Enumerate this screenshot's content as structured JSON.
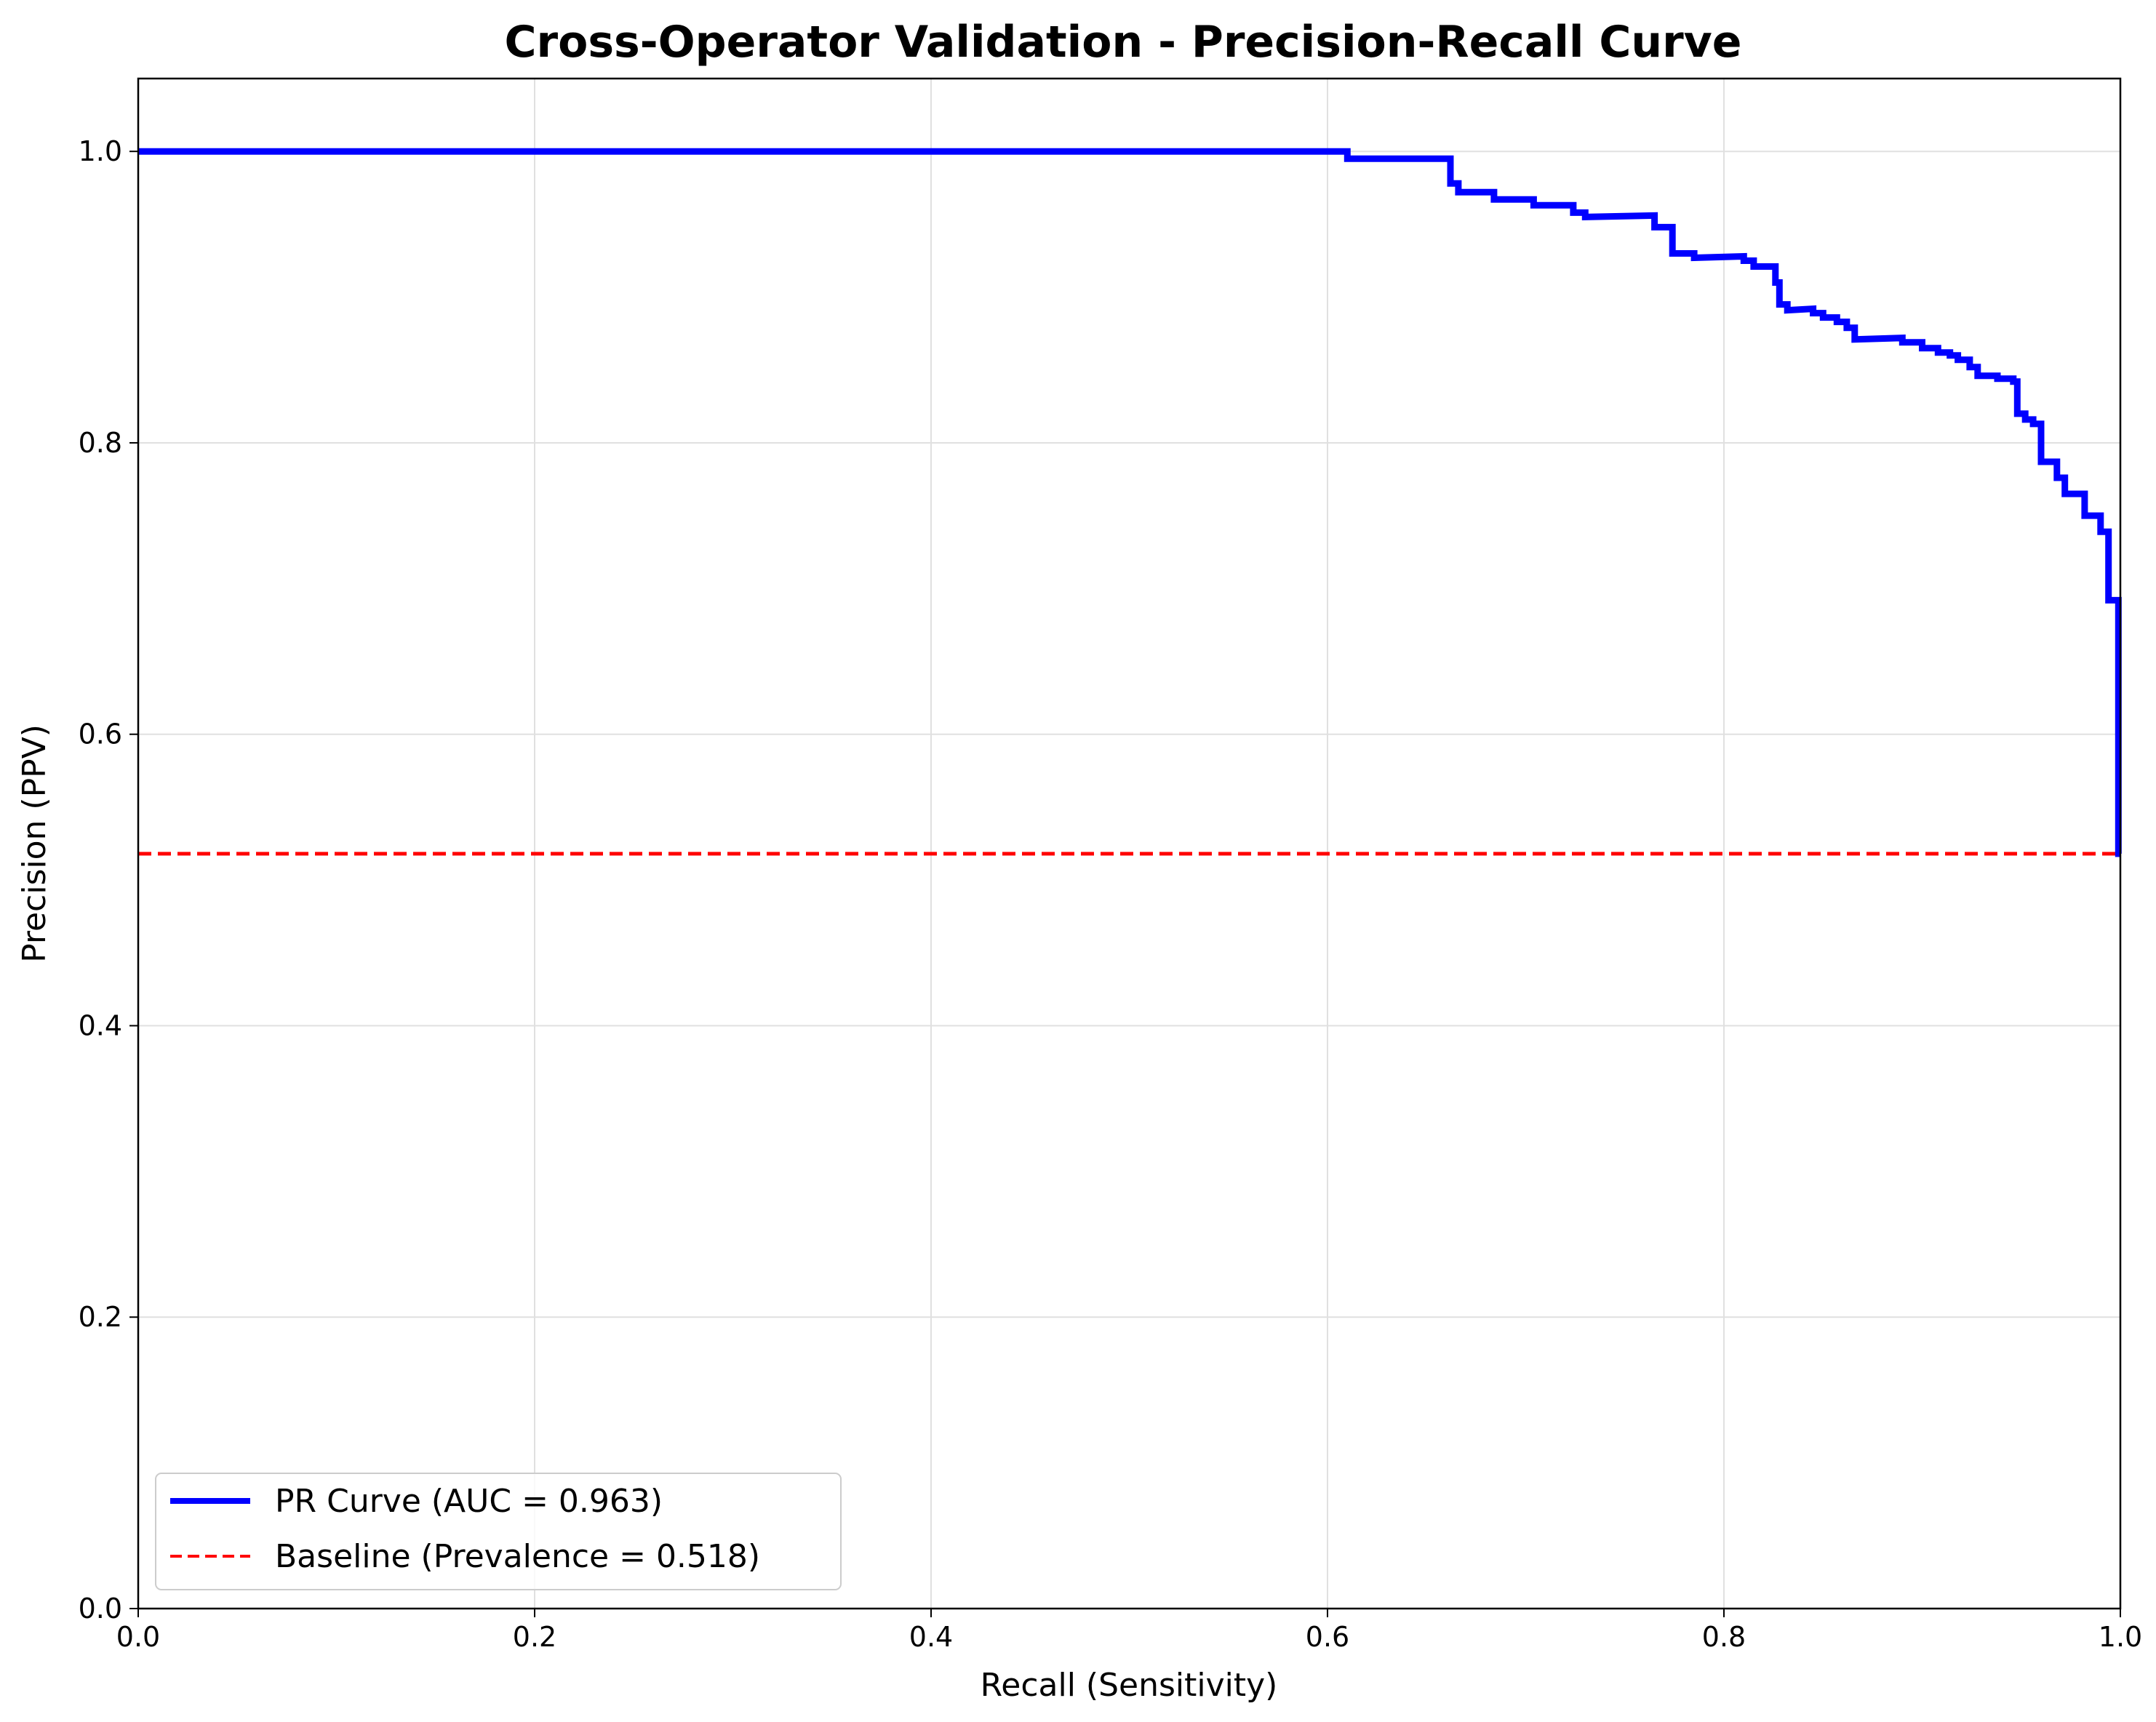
{
  "chart_data": {
    "type": "line",
    "title": "Cross-Operator Validation - Precision-Recall Curve",
    "xlabel": "Recall (Sensitivity)",
    "ylabel": "Precision (PPV)",
    "xlim": [
      0.0,
      1.0
    ],
    "ylim": [
      0.0,
      1.05
    ],
    "xticks": [
      "0.0",
      "0.2",
      "0.4",
      "0.6",
      "0.8",
      "1.0"
    ],
    "yticks": [
      "0.0",
      "0.2",
      "0.4",
      "0.6",
      "0.8",
      "1.0"
    ],
    "grid": true,
    "legend_position": "lower-left",
    "series": [
      {
        "name": "PR Curve (AUC = 0.963)",
        "color": "#0000ff",
        "style": "solid",
        "steps": [
          [
            0.0,
            1.0
          ],
          [
            0.61,
            1.0
          ],
          [
            0.61,
            0.995
          ],
          [
            0.662,
            0.995
          ],
          [
            0.662,
            0.978
          ],
          [
            0.666,
            0.978
          ],
          [
            0.666,
            0.972
          ],
          [
            0.684,
            0.972
          ],
          [
            0.684,
            0.967
          ],
          [
            0.704,
            0.967
          ],
          [
            0.704,
            0.963
          ],
          [
            0.724,
            0.963
          ],
          [
            0.724,
            0.958
          ],
          [
            0.73,
            0.958
          ],
          [
            0.73,
            0.955
          ],
          [
            0.765,
            0.956
          ],
          [
            0.765,
            0.948
          ],
          [
            0.774,
            0.948
          ],
          [
            0.774,
            0.93
          ],
          [
            0.785,
            0.93
          ],
          [
            0.785,
            0.927
          ],
          [
            0.81,
            0.928
          ],
          [
            0.81,
            0.925
          ],
          [
            0.815,
            0.925
          ],
          [
            0.815,
            0.921
          ],
          [
            0.826,
            0.921
          ],
          [
            0.826,
            0.91
          ],
          [
            0.828,
            0.91
          ],
          [
            0.828,
            0.895
          ],
          [
            0.832,
            0.895
          ],
          [
            0.832,
            0.891
          ],
          [
            0.845,
            0.892
          ],
          [
            0.845,
            0.889
          ],
          [
            0.85,
            0.889
          ],
          [
            0.85,
            0.886
          ],
          [
            0.857,
            0.886
          ],
          [
            0.857,
            0.883
          ],
          [
            0.862,
            0.883
          ],
          [
            0.862,
            0.879
          ],
          [
            0.866,
            0.879
          ],
          [
            0.866,
            0.871
          ],
          [
            0.89,
            0.872
          ],
          [
            0.89,
            0.869
          ],
          [
            0.9,
            0.869
          ],
          [
            0.9,
            0.865
          ],
          [
            0.908,
            0.865
          ],
          [
            0.908,
            0.862
          ],
          [
            0.914,
            0.862
          ],
          [
            0.914,
            0.86
          ],
          [
            0.918,
            0.86
          ],
          [
            0.918,
            0.857
          ],
          [
            0.924,
            0.857
          ],
          [
            0.924,
            0.852
          ],
          [
            0.928,
            0.852
          ],
          [
            0.928,
            0.846
          ],
          [
            0.938,
            0.846
          ],
          [
            0.938,
            0.844
          ],
          [
            0.946,
            0.844
          ],
          [
            0.946,
            0.842
          ],
          [
            0.948,
            0.842
          ],
          [
            0.948,
            0.82
          ],
          [
            0.952,
            0.82
          ],
          [
            0.952,
            0.816
          ],
          [
            0.956,
            0.816
          ],
          [
            0.956,
            0.813
          ],
          [
            0.96,
            0.813
          ],
          [
            0.96,
            0.787
          ],
          [
            0.968,
            0.787
          ],
          [
            0.968,
            0.776
          ],
          [
            0.972,
            0.776
          ],
          [
            0.972,
            0.765
          ],
          [
            0.982,
            0.765
          ],
          [
            0.982,
            0.75
          ],
          [
            0.99,
            0.75
          ],
          [
            0.99,
            0.739
          ],
          [
            0.994,
            0.739
          ],
          [
            0.994,
            0.692
          ],
          [
            0.999,
            0.692
          ],
          [
            0.999,
            0.518
          ],
          [
            1.0,
            0.518
          ]
        ]
      },
      {
        "name": "Baseline (Prevalence = 0.518)",
        "color": "#ff0000",
        "style": "dashed",
        "x": [
          0.0,
          1.0
        ],
        "y": [
          0.518,
          0.518
        ]
      }
    ]
  }
}
